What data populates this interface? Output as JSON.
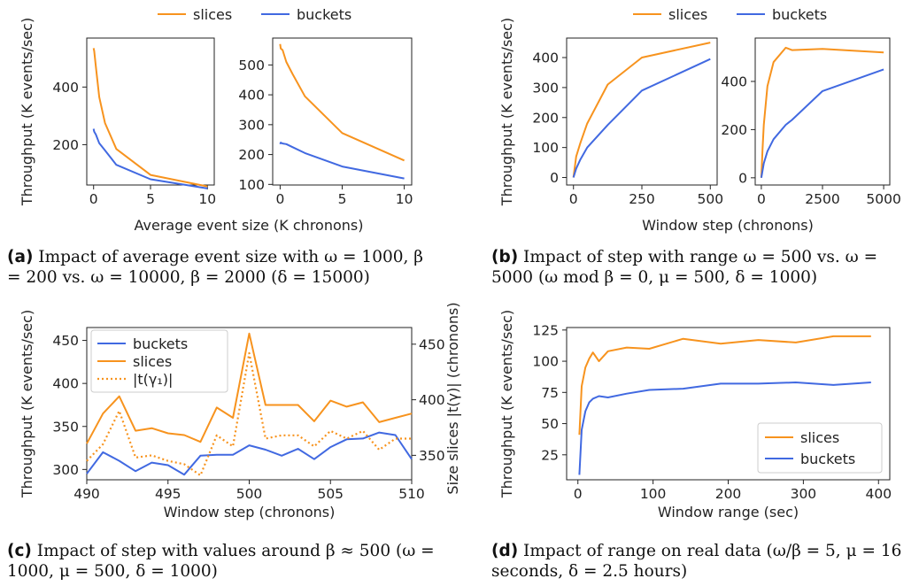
{
  "colors": {
    "slices": "#f7931e",
    "buckets": "#4169e1",
    "axis": "#222222"
  },
  "captions": {
    "a_label": "(a)",
    "a_text": "Impact of average event size with ω = 1000, β = 200 vs. ω = 10000, β = 2000 (δ = 15000)",
    "b_label": "(b)",
    "b_text": "Impact of step with range ω = 500 vs. ω = 5000 (ω mod β = 0, μ = 500, δ = 1000)",
    "c_label": "(c)",
    "c_text": "Impact of step with values around β ≈ 500 (ω = 1000, μ = 500, δ = 1000)",
    "d_label": "(d)",
    "d_text": "Impact of range on real data (ω/β = 5, μ = 16 seconds, δ = 2.5 hours)"
  },
  "chart_data": [
    {
      "id": "a1",
      "type": "line",
      "xlim": [
        -0.6,
        10.6
      ],
      "ylim": [
        60,
        570
      ],
      "xticks": [
        0,
        5,
        10
      ],
      "yticks": [
        200,
        400
      ],
      "ylabel": "Throughput (K events/sec)",
      "series": [
        {
          "name": "slices",
          "x": [
            0,
            0.05,
            0.2,
            0.5,
            1,
            2,
            5,
            10
          ],
          "y": [
            535,
            525,
            470,
            365,
            275,
            185,
            95,
            55
          ]
        },
        {
          "name": "buckets",
          "x": [
            0,
            0.05,
            0.2,
            0.5,
            1,
            2,
            5,
            10
          ],
          "y": [
            255,
            245,
            235,
            205,
            180,
            130,
            80,
            48
          ]
        }
      ]
    },
    {
      "id": "a2",
      "type": "line",
      "xlim": [
        -0.6,
        10.6
      ],
      "ylim": [
        98,
        590
      ],
      "xticks": [
        0,
        5,
        10
      ],
      "yticks": [
        100,
        200,
        300,
        400,
        500
      ],
      "series": [
        {
          "name": "slices",
          "x": [
            0,
            0.05,
            0.2,
            0.5,
            1,
            2,
            5,
            10
          ],
          "y": [
            570,
            555,
            550,
            510,
            470,
            395,
            272,
            180
          ]
        },
        {
          "name": "buckets",
          "x": [
            0,
            0.05,
            0.2,
            0.5,
            1,
            2,
            5,
            10
          ],
          "y": [
            235,
            240,
            237,
            235,
            225,
            205,
            160,
            120
          ]
        }
      ]
    },
    {
      "id": "b1",
      "type": "line",
      "xlim": [
        -25,
        525
      ],
      "ylim": [
        -25,
        465
      ],
      "xticks": [
        0,
        250,
        500
      ],
      "yticks": [
        0,
        100,
        200,
        300,
        400
      ],
      "ylabel": "Throughput (K events/sec)",
      "series": [
        {
          "name": "slices",
          "x": [
            0,
            10,
            25,
            50,
            125,
            250,
            500
          ],
          "y": [
            0,
            70,
            115,
            180,
            310,
            400,
            450
          ]
        },
        {
          "name": "buckets",
          "x": [
            0,
            10,
            25,
            50,
            125,
            250,
            500
          ],
          "y": [
            0,
            30,
            60,
            100,
            175,
            290,
            395
          ]
        }
      ]
    },
    {
      "id": "b2",
      "type": "line",
      "xlim": [
        -250,
        5250
      ],
      "ylim": [
        -30,
        580
      ],
      "xticks": [
        0,
        2500,
        5000
      ],
      "yticks": [
        0,
        200,
        400
      ],
      "series": [
        {
          "name": "slices",
          "x": [
            0,
            50,
            100,
            250,
            500,
            1000,
            1250,
            2500,
            5000
          ],
          "y": [
            0,
            120,
            220,
            380,
            480,
            540,
            530,
            535,
            520
          ]
        },
        {
          "name": "buckets",
          "x": [
            0,
            50,
            100,
            250,
            500,
            1000,
            1250,
            2500,
            5000
          ],
          "y": [
            0,
            30,
            60,
            110,
            160,
            220,
            240,
            360,
            450
          ]
        }
      ]
    },
    {
      "id": "c",
      "type": "line",
      "xlim": [
        490,
        510
      ],
      "ylim": [
        288,
        465
      ],
      "y2lim": [
        328,
        465
      ],
      "xticks": [
        490,
        495,
        500,
        505,
        510
      ],
      "yticks": [
        300,
        350,
        400,
        450
      ],
      "y2ticks": [
        350,
        400,
        450
      ],
      "xlabel": "Window step (chronons)",
      "ylabel": "Throughput (K events/sec)",
      "y2label": "Size slices |t(γ)| (chronons)",
      "x": [
        490,
        491,
        492,
        493,
        494,
        495,
        496,
        497,
        498,
        499,
        500,
        501,
        502,
        503,
        504,
        505,
        506,
        507,
        508,
        509,
        510
      ],
      "series": [
        {
          "name": "buckets",
          "axis": "left",
          "values": [
            295,
            320,
            310,
            298,
            308,
            305,
            294,
            316,
            317,
            317,
            328,
            323,
            316,
            324,
            312,
            326,
            335,
            336,
            343,
            340,
            312
          ]
        },
        {
          "name": "slices",
          "axis": "left",
          "values": [
            330,
            365,
            385,
            345,
            348,
            342,
            340,
            332,
            372,
            360,
            458,
            375,
            375,
            375,
            356,
            380,
            373,
            378,
            355,
            360,
            365
          ]
        },
        {
          "name": "|t(γ₁)|",
          "axis": "right",
          "dashed": true,
          "values": [
            345,
            360,
            390,
            348,
            350,
            345,
            342,
            332,
            368,
            358,
            442,
            365,
            368,
            368,
            358,
            372,
            365,
            372,
            355,
            365,
            365
          ]
        }
      ]
    },
    {
      "id": "d",
      "type": "line",
      "xlim": [
        -15,
        415
      ],
      "ylim": [
        5,
        127
      ],
      "xticks": [
        0,
        100,
        200,
        300,
        400
      ],
      "yticks": [
        25,
        50,
        75,
        100,
        125
      ],
      "xlabel": "Window range (sec)",
      "ylabel": "Throughput (K events/sec)",
      "series": [
        {
          "name": "slices",
          "x": [
            2,
            5,
            10,
            15,
            20,
            28,
            40,
            65,
            95,
            140,
            190,
            240,
            290,
            340,
            390
          ],
          "y": [
            41,
            80,
            95,
            102,
            107,
            100,
            108,
            111,
            110,
            118,
            114,
            117,
            115,
            120,
            120
          ]
        },
        {
          "name": "buckets",
          "x": [
            2,
            5,
            10,
            15,
            20,
            28,
            40,
            65,
            95,
            140,
            190,
            240,
            290,
            340,
            390
          ],
          "y": [
            9,
            45,
            60,
            67,
            70,
            72,
            71,
            74,
            77,
            78,
            82,
            82,
            83,
            81,
            83
          ]
        }
      ]
    }
  ],
  "legend": {
    "slices": "slices",
    "buckets": "buckets",
    "tgamma": "|t(γ₁)|"
  },
  "shared_labels": {
    "a_xlabel": "Average event size (K chronons)",
    "b_xlabel": "Window step (chronons)"
  }
}
